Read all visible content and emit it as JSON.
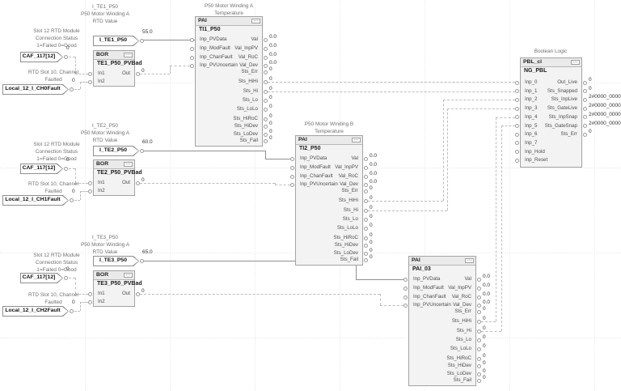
{
  "icons": {
    "properties": "…"
  },
  "groups": [
    {
      "rtd_desc": [
        "I_TE1_P50",
        "P50 Motor Winding A",
        "RTD Value"
      ],
      "rtd_tag": "I_TE1_P50",
      "rtd_value": "55.0",
      "module_desc": [
        "Slot 12 RTD Module",
        "Connection Status",
        "1=Failed 0=Good"
      ],
      "module_tag": "CAF_117[12]",
      "module_value": "0",
      "fault_desc": [
        "RTD Slot 10, Channel",
        "Faulted"
      ],
      "fault_tag": "Local_12_I_CH0Fault",
      "fault_value": "0",
      "bor": {
        "type": "BOR",
        "name": "TE1_P50_PVBad",
        "in1": "In1",
        "in2": "In2",
        "out": "Out",
        "out_value": "0"
      }
    },
    {
      "rtd_desc": [
        "I_TE2_P50",
        "P50 Motor Winding A",
        "RTD Value"
      ],
      "rtd_tag": "I_TE2_P50",
      "rtd_value": "60.0",
      "module_desc": [
        "Slot 12 RTD Module",
        "Connection Status",
        "1=Failed 0=Good"
      ],
      "module_tag": "CAF_117[12]",
      "module_value": "0",
      "fault_desc": [
        "RTD Slot 10, Channel",
        "Faulted"
      ],
      "fault_tag": "Local_12_I_CH1Fault",
      "fault_value": "0",
      "bor": {
        "type": "BOR",
        "name": "TE2_P50_PVBad",
        "in1": "In1",
        "in2": "In2",
        "out": "Out",
        "out_value": "0"
      }
    },
    {
      "rtd_desc": [
        "I_TE3_P50",
        "P50 Motor Winding A",
        "RTD Value"
      ],
      "rtd_tag": "I_TE3_P50",
      "rtd_value": "65.0",
      "module_desc": [
        "Slot 12 RTD Module",
        "Connection Status",
        "1=Failed 0=Good"
      ],
      "module_tag": "CAF_117[12]",
      "module_value": "0",
      "fault_desc": [
        "RTD Slot 10, Channel",
        "Faulted"
      ],
      "fault_tag": "Local_12_I_CH2Fault",
      "fault_value": "0",
      "bor": {
        "type": "BOR",
        "name": "TE3_P50_PVBad",
        "in1": "In1",
        "in2": "In2",
        "out": "Out",
        "out_value": "0"
      }
    }
  ],
  "pai_blocks": [
    {
      "desc": [
        "P50 Motor Winding A",
        "Temperature"
      ],
      "type": "PAI",
      "name": "TI1_P50",
      "inputs": [
        "Inp_PVData",
        "Inp_ModFault",
        "Inp_ChanFault",
        "Inp_PVUncertain"
      ],
      "outputs": [
        {
          "label": "Val",
          "value": "0.0"
        },
        {
          "label": "Val_InpPV",
          "value": "0.0"
        },
        {
          "label": "Val_RoC",
          "value": "0.0"
        },
        {
          "label": "Val_Dev",
          "value": "0.0"
        },
        {
          "label": "Sts_Err",
          "value": "0"
        },
        {
          "label": "Sts_HiHi",
          "value": "0"
        },
        {
          "label": "Sts_Hi",
          "value": "0"
        },
        {
          "label": "Sts_Lo",
          "value": "0"
        },
        {
          "label": "Sts_LoLo",
          "value": "0"
        },
        {
          "label": "Sts_HiRoC",
          "value": "0"
        },
        {
          "label": "Sts_HiDev",
          "value": "0"
        },
        {
          "label": "Sts_LoDev",
          "value": "0"
        },
        {
          "label": "Sts_Fail",
          "value": "0"
        }
      ]
    },
    {
      "desc": [
        "P50 Motor Winding B",
        "Temperature"
      ],
      "type": "PAI",
      "name": "TI2_P50",
      "inputs": [
        "Inp_PVData",
        "Inp_ModFault",
        "Inp_ChanFault",
        "Inp_PVUncertain"
      ],
      "outputs": [
        {
          "label": "Val",
          "value": "0.0"
        },
        {
          "label": "Val_InpPV",
          "value": "0.0"
        },
        {
          "label": "Val_RoC",
          "value": "0.0"
        },
        {
          "label": "Val_Dev",
          "value": "0.0"
        },
        {
          "label": "Sts_Err",
          "value": "0"
        },
        {
          "label": "Sts_HiHi",
          "value": "0"
        },
        {
          "label": "Sts_Hi",
          "value": "0"
        },
        {
          "label": "Sts_Lo",
          "value": "0"
        },
        {
          "label": "Sts_LoLo",
          "value": "0"
        },
        {
          "label": "Sts_HiRoC",
          "value": "0"
        },
        {
          "label": "Sts_HiDev",
          "value": "0"
        },
        {
          "label": "Sts_LoDev",
          "value": "0"
        },
        {
          "label": "Sts_Fail",
          "value": "0"
        }
      ]
    },
    {
      "desc": [],
      "type": "PAI",
      "name": "PAI_03",
      "inputs": [
        "Inp_PVData",
        "Inp_ModFault",
        "Inp_ChanFault",
        "Inp_PVUncertain"
      ],
      "outputs": [
        {
          "label": "Val",
          "value": "0.0"
        },
        {
          "label": "Val_InpPV",
          "value": "0.0"
        },
        {
          "label": "Val_RoC",
          "value": "0.0"
        },
        {
          "label": "Val_Dev",
          "value": "0.0"
        },
        {
          "label": "Sts_Err",
          "value": "0"
        },
        {
          "label": "Sts_HiHi",
          "value": "0"
        },
        {
          "label": "Sts_Hi",
          "value": "0"
        },
        {
          "label": "Sts_Lo",
          "value": "0"
        },
        {
          "label": "Sts_LoLo",
          "value": "0"
        },
        {
          "label": "Sts_HiRoC",
          "value": "0"
        },
        {
          "label": "Sts_HiDev",
          "value": "0"
        },
        {
          "label": "Sts_LoDev",
          "value": "0"
        },
        {
          "label": "Sts_Fail",
          "value": "0"
        }
      ]
    }
  ],
  "pbl": {
    "desc": [
      "Boolean Logic"
    ],
    "type": "PBL_cl",
    "name": "NG_PBL",
    "inputs": [
      "Inp_0",
      "Inp_1",
      "Inp_2",
      "Inp_3",
      "Inp_4",
      "Inp_5",
      "Inp_6",
      "Inp_7",
      "Inp_Hold",
      "Inp_Reset"
    ],
    "outputs": [
      {
        "label": "Out_Live",
        "value": "0"
      },
      {
        "label": "Sts_Snapped",
        "value": "0"
      },
      {
        "label": "Sts_InpLive",
        "value": "2#0000_0000"
      },
      {
        "label": "Sts_GateLive",
        "value": "2#0000_0000"
      },
      {
        "label": "Sts_InpSnap",
        "value": "2#0000_0000"
      },
      {
        "label": "Sts_GateSnap",
        "value": "2#0000_0000"
      },
      {
        "label": "Sts_Err",
        "value": "0"
      }
    ]
  }
}
